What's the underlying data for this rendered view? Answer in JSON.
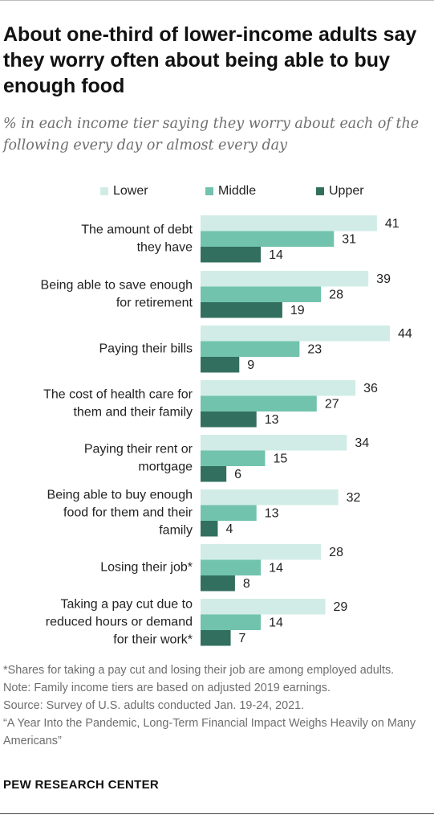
{
  "title": "About one-third of lower-income adults say they worry often about being able to buy enough food",
  "subtitle": "% in each income tier saying they worry about each of the following every day or almost every day",
  "colors": {
    "lower": "#d1ece6",
    "middle": "#71c3ad",
    "upper": "#326f5f"
  },
  "chart_data": {
    "type": "bar",
    "orientation": "horizontal",
    "legend_position": "top",
    "grid": false,
    "xlim": [
      0,
      44
    ],
    "categories": [
      [
        "The amount of debt",
        "they have"
      ],
      [
        "Being able to save enough",
        "for retirement"
      ],
      [
        "Paying their bills"
      ],
      [
        "The cost of health care for",
        "them and their family"
      ],
      [
        "Paying their rent or",
        "mortgage"
      ],
      [
        "Being able to buy enough",
        "food for them and their",
        "family"
      ],
      [
        "Losing their job*"
      ],
      [
        "Taking a pay cut due to",
        "reduced hours or demand",
        "for their work*"
      ]
    ],
    "series": [
      {
        "name": "Lower",
        "values": [
          41,
          39,
          44,
          36,
          34,
          32,
          28,
          29
        ]
      },
      {
        "name": "Middle",
        "values": [
          31,
          28,
          23,
          27,
          15,
          13,
          14,
          14
        ]
      },
      {
        "name": "Upper",
        "values": [
          14,
          19,
          9,
          13,
          6,
          4,
          8,
          7
        ]
      }
    ]
  },
  "footnotes": [
    "*Shares for taking a pay cut and losing their job are among employed adults.",
    "Note: Family income tiers are based on adjusted 2019 earnings.",
    "Source: Survey of U.S. adults conducted Jan. 19-24, 2021.",
    "“A Year Into the Pandemic, Long-Term Financial Impact Weighs Heavily on Many Americans”"
  ],
  "source_label": "PEW RESEARCH CENTER"
}
